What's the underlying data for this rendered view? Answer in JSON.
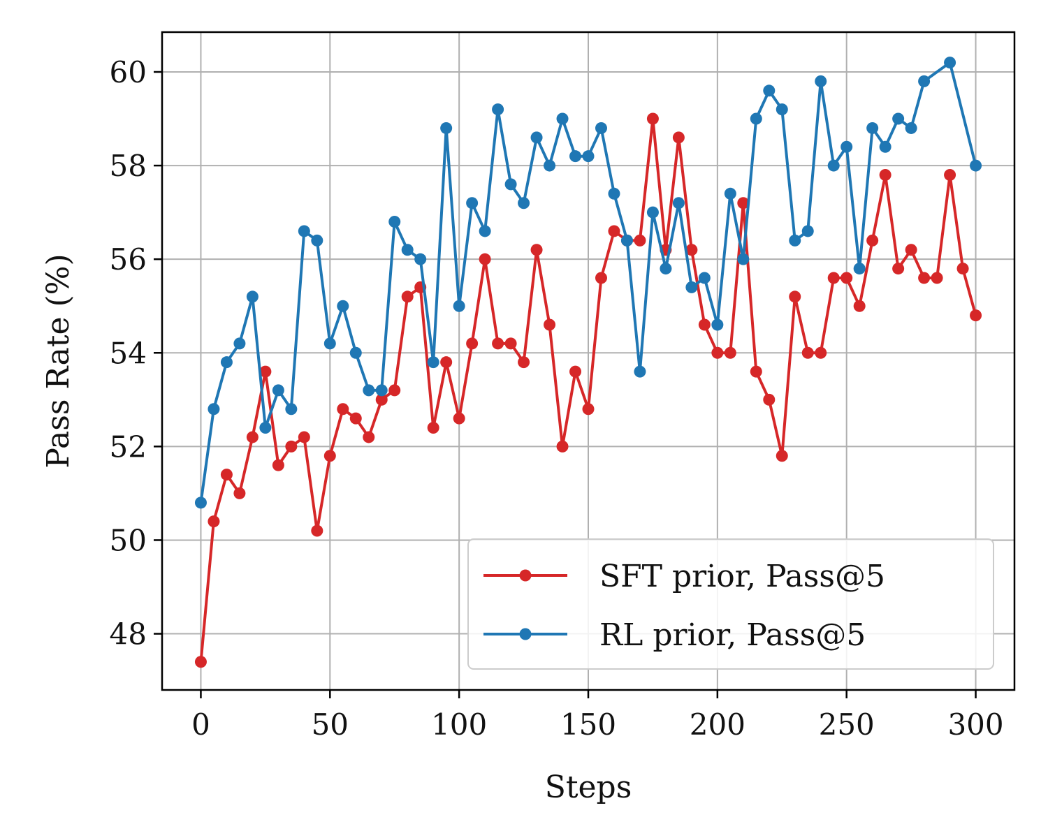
{
  "chart_data": {
    "type": "line",
    "title": "",
    "xlabel": "Steps",
    "ylabel": "Pass Rate (%)",
    "xlim": [
      -15,
      315
    ],
    "ylim": [
      46.8,
      60.85
    ],
    "xticks": [
      0,
      50,
      100,
      150,
      200,
      250,
      300
    ],
    "yticks": [
      48,
      50,
      52,
      54,
      56,
      58,
      60
    ],
    "grid": true,
    "legend_position": "lower-right",
    "x": [
      0,
      5,
      10,
      15,
      20,
      25,
      30,
      35,
      40,
      45,
      50,
      55,
      60,
      65,
      70,
      75,
      80,
      85,
      90,
      95,
      100,
      105,
      110,
      115,
      120,
      125,
      130,
      135,
      140,
      145,
      150,
      155,
      160,
      165,
      170,
      175,
      180,
      185,
      190,
      195,
      200,
      205,
      210,
      215,
      220,
      225,
      230,
      235,
      240,
      245,
      250,
      255,
      260,
      265,
      270,
      275,
      280,
      285,
      290,
      295,
      300
    ],
    "series": [
      {
        "name": "SFT prior, Pass@5",
        "color": "#d62728",
        "values": [
          47.4,
          50.4,
          51.4,
          51.0,
          52.2,
          53.6,
          51.6,
          52.0,
          52.2,
          50.2,
          51.8,
          52.8,
          52.6,
          52.2,
          53.0,
          53.2,
          55.2,
          55.4,
          52.4,
          53.8,
          52.6,
          54.2,
          56.0,
          54.2,
          54.2,
          53.8,
          56.2,
          54.6,
          52.0,
          53.6,
          52.8,
          55.6,
          56.6,
          56.4,
          56.4,
          59.0,
          56.2,
          58.6,
          56.2,
          54.6,
          54.0,
          54.0,
          57.2,
          53.6,
          53.0,
          51.8,
          55.2,
          54.0,
          54.0,
          55.6,
          55.6,
          55.0,
          56.4,
          57.8,
          55.8,
          56.2,
          55.6,
          55.6,
          57.8,
          55.8,
          54.8
        ]
      },
      {
        "name": "RL prior, Pass@5",
        "color": "#1f77b4",
        "values": [
          50.8,
          52.8,
          53.8,
          54.2,
          55.2,
          52.4,
          53.2,
          52.8,
          56.6,
          56.4,
          54.2,
          55.0,
          54.0,
          53.2,
          53.2,
          56.8,
          56.2,
          56.0,
          53.8,
          58.8,
          55.0,
          57.2,
          56.6,
          59.2,
          57.6,
          57.2,
          58.6,
          58.0,
          59.0,
          58.2,
          58.2,
          58.8,
          57.4,
          56.4,
          53.6,
          57.0,
          55.8,
          57.2,
          55.4,
          55.6,
          54.6,
          57.4,
          56.0,
          59.0,
          59.6,
          59.2,
          56.4,
          56.6,
          59.8,
          58.0,
          58.4,
          55.8,
          58.8,
          58.4,
          59.0,
          58.8,
          59.8,
          null,
          60.2,
          null,
          58.0
        ]
      }
    ]
  }
}
